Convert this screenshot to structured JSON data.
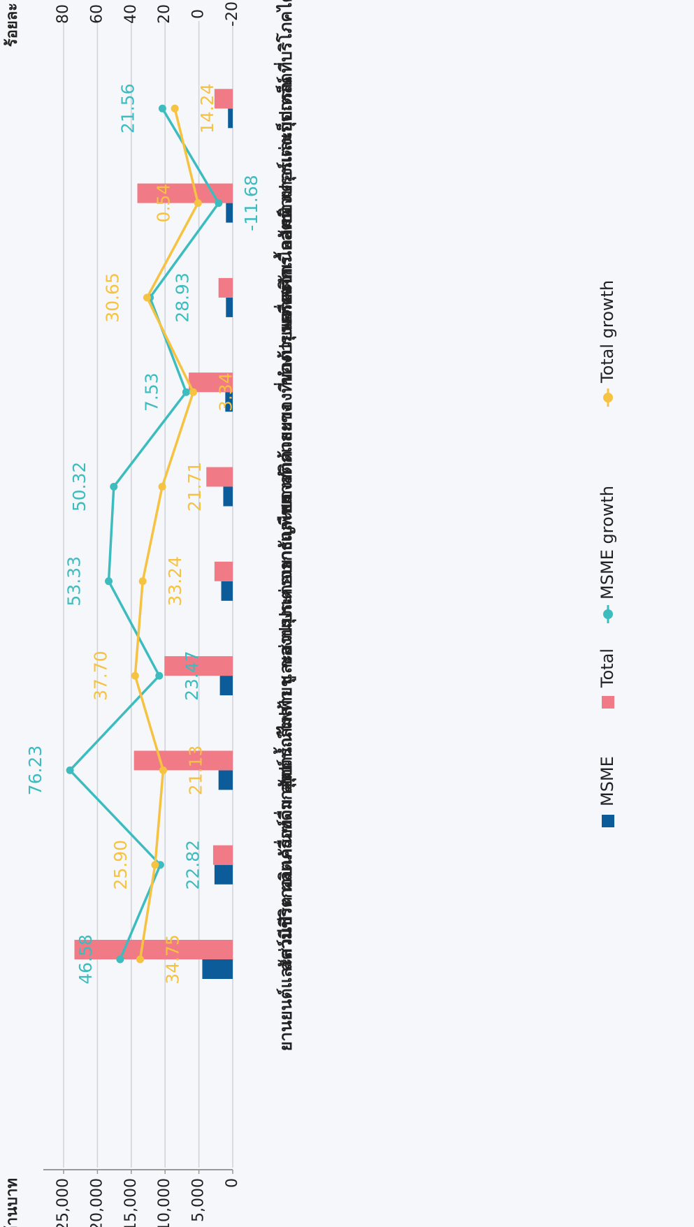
{
  "chart_data": {
    "type": "bar-line",
    "y_title": "ล้านบาท",
    "y2_title": "ร้อยละ",
    "categories": [
      "ยานยนต์และส่วนประกอบ",
      "สัตว์มีชีวิต ผลิตภัณฑ์จากสัตว์",
      "เครื่องดื่ม สุรา น้ำส้มสายชู",
      "อุปกรณ์ไฟฟ้า และส่วนประกอบ",
      "ของปรุงแต่งจากธัญพืชฯ",
      "ยางและของทำด้วยยาง",
      "พลาสติกและของที่ทำด้วยพลาสติก",
      "ของปรุงแต่งจากเนื้อสัตว์",
      "เครื่องจักร คอมพิวเตอร์และอุปกรณ์",
      "ของปรุงแต่งเบ็ดเตล็ดที่บริโภคได้"
    ],
    "series": [
      {
        "name": "MSME",
        "color": "#0d5c9a",
        "kind": "bar",
        "values": [
          4500,
          2700,
          2100,
          1900,
          1700,
          1400,
          1100,
          1000,
          1000,
          700
        ]
      },
      {
        "name": "Total",
        "color": "#f07b86",
        "kind": "bar",
        "values": [
          23400,
          2900,
          14600,
          10100,
          2700,
          3900,
          6500,
          2100,
          14100,
          2700
        ]
      },
      {
        "name": "MSME growth",
        "color": "#3dbcc0",
        "kind": "line",
        "axis": "y2",
        "values": [
          46.58,
          22.82,
          76.23,
          23.47,
          53.33,
          50.32,
          7.53,
          28.93,
          -11.68,
          21.56
        ]
      },
      {
        "name": "Total growth",
        "color": "#f5c242",
        "kind": "line",
        "axis": "y2",
        "values": [
          34.75,
          25.9,
          21.13,
          37.7,
          33.24,
          21.71,
          3.34,
          30.65,
          0.54,
          14.24
        ],
        "value_labels": [
          "34.75",
          "25.90",
          "21.13",
          "37.70",
          "33.24",
          "21.71",
          "3.34",
          "30.65",
          "0.54",
          "14.24"
        ]
      }
    ],
    "ylim": [
      0,
      25000
    ],
    "yticks": [
      {
        "value": 0,
        "label": "0"
      },
      {
        "value": 5000,
        "label": "5,000"
      },
      {
        "value": 10000,
        "label": "10,000"
      },
      {
        "value": 15000,
        "label": "15,000"
      },
      {
        "value": 20000,
        "label": "20,000"
      },
      {
        "value": 25000,
        "label": "25,000"
      }
    ],
    "y2lim": [
      -20,
      80
    ],
    "y2ticks": [
      -20,
      0,
      20,
      40,
      60,
      80
    ],
    "grid": true
  }
}
